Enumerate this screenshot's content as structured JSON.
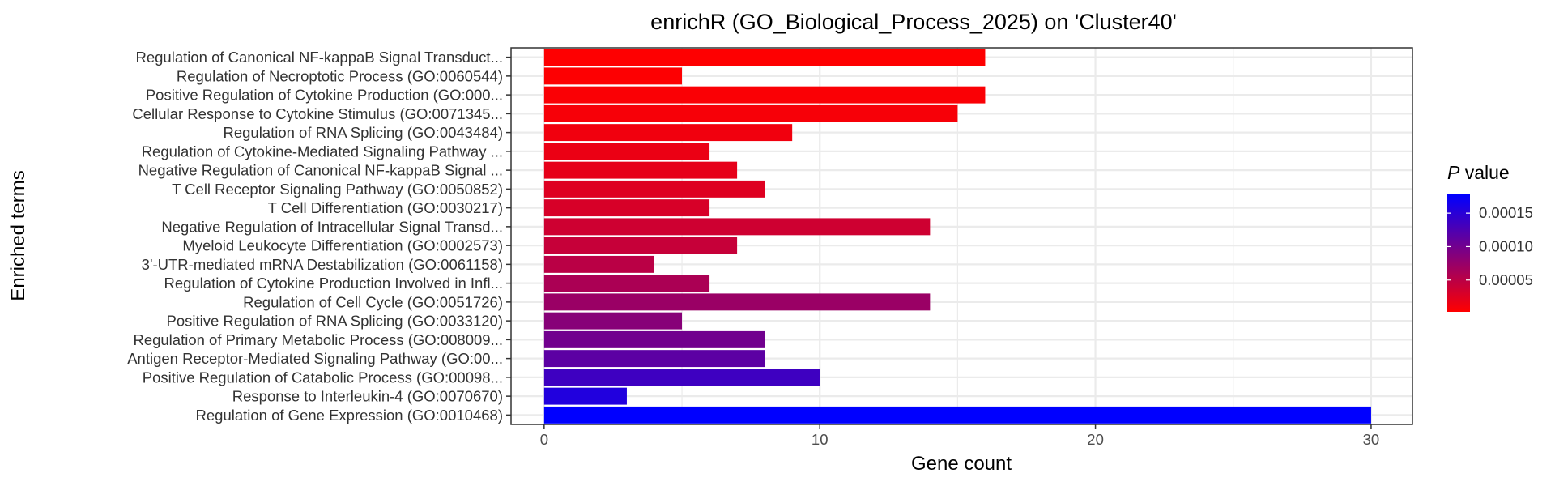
{
  "chart_data": {
    "type": "bar",
    "orientation": "horizontal",
    "title": "enrichR (GO_Biological_Process_2025) on 'Cluster40'",
    "xlabel": "Gene count",
    "ylabel": "Enriched terms",
    "xlim": [
      -1.2,
      31.5
    ],
    "xticks": [
      0,
      10,
      20,
      30
    ],
    "grid": true,
    "legend": {
      "title_italic": "P",
      "title_rest": " value",
      "position": "right",
      "type": "colorbar",
      "range": [
        2.5e-06,
        0.000178
      ],
      "ticks": [
        5e-05,
        0.0001,
        0.00015
      ],
      "tick_labels": [
        "0.00005",
        "0.00010",
        "0.00015"
      ],
      "color_low": "#ff0000",
      "color_high": "#0000ff"
    },
    "categories": [
      "Regulation of Canonical NF-kappaB Signal Transduct...",
      "Regulation of Necroptotic Process (GO:0060544)",
      "Positive Regulation of Cytokine Production (GO:000...",
      "Cellular Response to Cytokine Stimulus (GO:0071345...",
      "Regulation of RNA Splicing (GO:0043484)",
      "Regulation of Cytokine-Mediated Signaling Pathway ...",
      "Negative Regulation of Canonical NF-kappaB Signal ...",
      "T Cell Receptor Signaling Pathway (GO:0050852)",
      "T Cell Differentiation (GO:0030217)",
      "Negative Regulation of Intracellular Signal Transd...",
      "Myeloid Leukocyte Differentiation (GO:0002573)",
      "3'-UTR-mediated mRNA Destabilization (GO:0061158)",
      "Regulation of Cytokine Production Involved in Infl...",
      "Regulation of Cell Cycle (GO:0051726)",
      "Positive Regulation of RNA Splicing (GO:0033120)",
      "Regulation of Primary Metabolic Process (GO:008009...",
      "Antigen Receptor-Mediated Signaling Pathway (GO:00...",
      "Positive Regulation of Catabolic Process (GO:00098...",
      "Response to Interleukin-4 (GO:0070670)",
      "Regulation of Gene Expression (GO:0010468)"
    ],
    "values": [
      16,
      5,
      16,
      15,
      9,
      6,
      7,
      8,
      6,
      14,
      7,
      4,
      6,
      14,
      5,
      8,
      8,
      10,
      3,
      30
    ],
    "p_values": [
      3e-06,
      4e-06,
      6e-06,
      8e-06,
      1.2e-05,
      1.6e-05,
      2e-05,
      2.5e-05,
      3e-05,
      3.6e-05,
      4.2e-05,
      5e-05,
      6e-05,
      7.2e-05,
      8.5e-05,
      0.0001,
      0.000115,
      0.000135,
      0.000155,
      0.000178
    ]
  }
}
